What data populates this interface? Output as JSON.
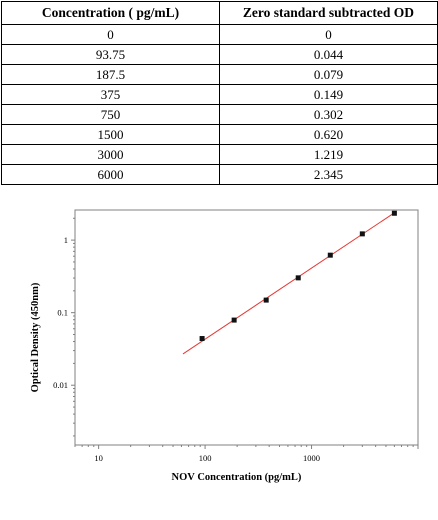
{
  "table": {
    "headers": [
      "Concentration ( pg/mL)",
      "Zero standard subtracted OD"
    ],
    "rows": [
      [
        "0",
        "0"
      ],
      [
        "93.75",
        "0.044"
      ],
      [
        "187.5",
        "0.079"
      ],
      [
        "375",
        "0.149"
      ],
      [
        "750",
        "0.302"
      ],
      [
        "1500",
        "0.620"
      ],
      [
        "3000",
        "1.219"
      ],
      [
        "6000",
        "2.345"
      ]
    ]
  },
  "chart_data": {
    "type": "scatter",
    "xlabel": "NOV Concentration (pg/mL)",
    "ylabel": "Optical Density (450nm)",
    "x_scale": "log",
    "y_scale": "log",
    "xlim": [
      6,
      10000
    ],
    "ylim": [
      0.0015,
      2.6
    ],
    "x_ticks": [
      10,
      100,
      1000
    ],
    "x_tick_labels": [
      "10",
      "100",
      "1000"
    ],
    "y_ticks": [
      0.01,
      0.1,
      1
    ],
    "y_tick_labels": [
      "0.01",
      "0.1",
      "1"
    ],
    "grid": false,
    "points": {
      "x": [
        93.75,
        187.5,
        375,
        750,
        1500,
        3000,
        6000
      ],
      "y": [
        0.044,
        0.079,
        0.149,
        0.302,
        0.62,
        1.219,
        2.345
      ]
    },
    "fit_line": {
      "x": [
        62,
        6000
      ],
      "y": [
        0.027,
        2.38
      ],
      "color": "#e53935"
    },
    "marker_color": "#111111",
    "axis_color": "#808080"
  }
}
